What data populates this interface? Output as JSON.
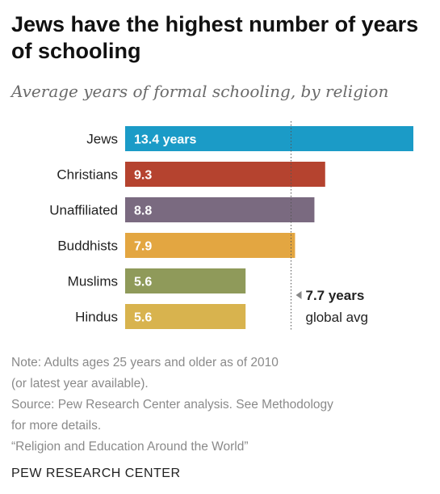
{
  "title": "Jews have the highest number of years of schooling",
  "subtitle": "Average years of formal schooling, by religion",
  "chart_data": {
    "type": "bar",
    "orientation": "horizontal",
    "categories": [
      "Jews",
      "Christians",
      "Unaffiliated",
      "Buddhists",
      "Muslims",
      "Hindus"
    ],
    "values": [
      13.4,
      9.3,
      8.8,
      7.9,
      5.6,
      5.6
    ],
    "value_labels": [
      "13.4 years",
      "9.3",
      "8.8",
      "7.9",
      "5.6",
      "5.6"
    ],
    "colors": [
      "#1b9bc7",
      "#b5432f",
      "#7a6a80",
      "#e3a641",
      "#8f9a5a",
      "#d8b34e"
    ],
    "reference_line": {
      "value": 7.7,
      "label_value": "7.7 years",
      "label_text": "global avg",
      "style": "dotted"
    },
    "xlim": [
      0,
      13.4
    ],
    "grid": false,
    "legend": "none"
  },
  "notes": [
    "Note: Adults ages 25 years and older as of 2010",
    "(or latest year available).",
    "Source: Pew Research Center analysis. See Methodology",
    "for more details.",
    "“Religion and Education Around the World”"
  ],
  "footer": "PEW RESEARCH CENTER"
}
